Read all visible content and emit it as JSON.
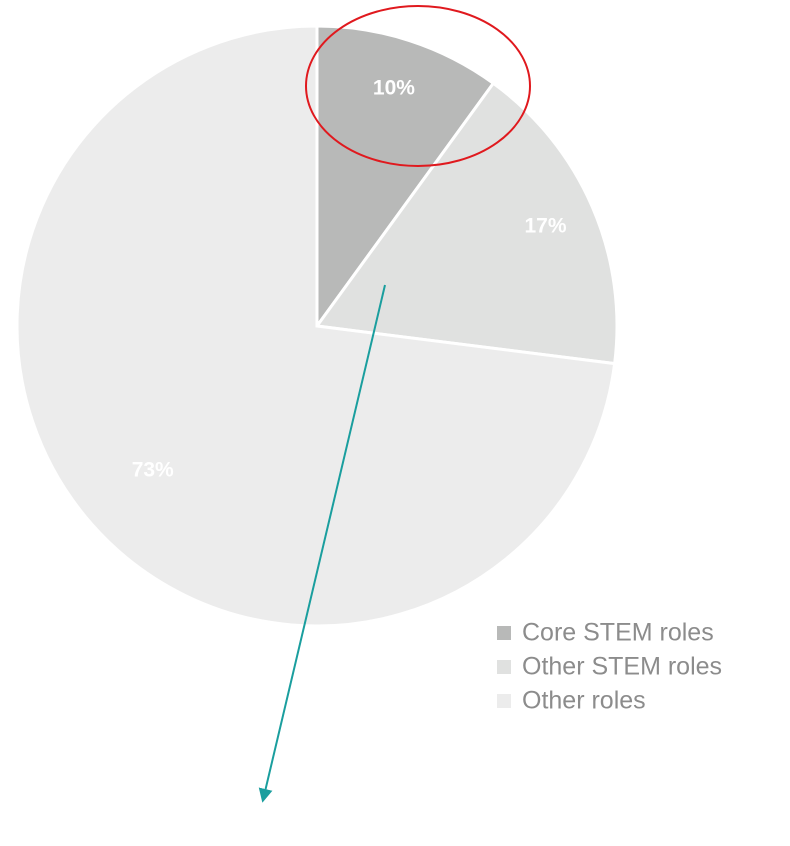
{
  "chart_data": {
    "type": "pie",
    "categories": [
      "Core STEM roles",
      "Other STEM roles",
      "Other roles"
    ],
    "values": [
      10,
      17,
      73
    ],
    "value_labels": [
      "10%",
      "17%",
      "73%"
    ],
    "colors": [
      "#b8b9b8",
      "#e0e1e0",
      "#ececec"
    ],
    "legend": "lower right"
  }
}
